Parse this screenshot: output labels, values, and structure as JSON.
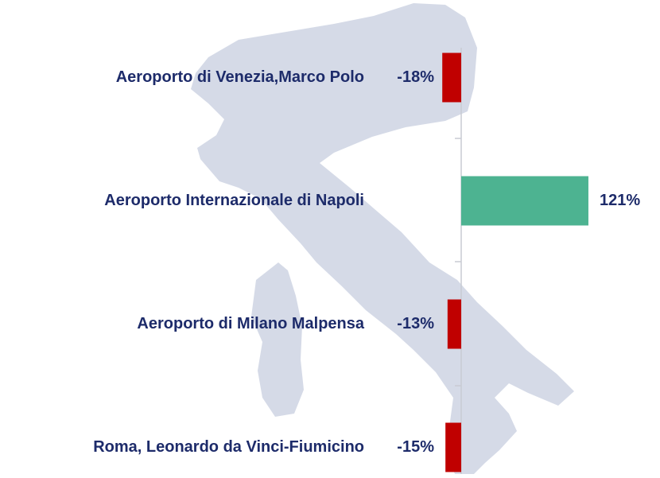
{
  "chart_data": {
    "type": "bar",
    "orientation": "horizontal",
    "categories": [
      "Aeroporto di Venezia,Marco Polo",
      "Aeroporto Internazionale di Napoli",
      "Aeroporto di Milano Malpensa",
      "Roma, Leonardo da Vinci-Fiumicino"
    ],
    "values": [
      -18,
      121,
      -13,
      -15
    ],
    "value_labels": [
      "-18%",
      "121%",
      "-13%",
      "-15%"
    ],
    "colors": [
      "#c00000",
      "#4db391",
      "#c00000",
      "#c00000"
    ]
  }
}
